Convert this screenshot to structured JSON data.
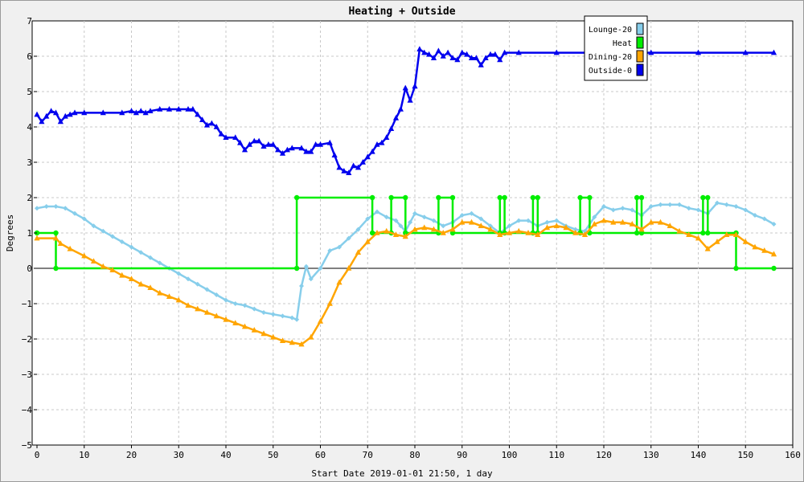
{
  "chart_data": {
    "type": "line",
    "title": "Heating + Outside",
    "xlabel": "Start Date 2019-01-01 21:50, 1 day",
    "ylabel": "Degrees",
    "xlim": [
      0,
      160
    ],
    "ylim": [
      -5,
      7
    ],
    "xticks": [
      "0",
      "10",
      "20",
      "30",
      "40",
      "50",
      "60",
      "70",
      "80",
      "90",
      "100",
      "110",
      "120",
      "130",
      "140",
      "150",
      "160"
    ],
    "yticks": [
      "7",
      "6",
      "5",
      "4",
      "3",
      "2",
      "1",
      "0",
      "−1",
      "−2",
      "−3",
      "−4",
      "−5"
    ],
    "grid": true,
    "legend_position": "top-right",
    "series": [
      {
        "name": "Lounge-20",
        "color": "#87ceeb",
        "marker": "diamond",
        "points": [
          [
            0,
            1.7
          ],
          [
            2,
            1.75
          ],
          [
            4,
            1.75
          ],
          [
            6,
            1.7
          ],
          [
            8,
            1.55
          ],
          [
            10,
            1.4
          ],
          [
            12,
            1.2
          ],
          [
            14,
            1.05
          ],
          [
            16,
            0.9
          ],
          [
            18,
            0.75
          ],
          [
            20,
            0.6
          ],
          [
            22,
            0.45
          ],
          [
            24,
            0.3
          ],
          [
            26,
            0.15
          ],
          [
            28,
            0.0
          ],
          [
            30,
            -0.15
          ],
          [
            32,
            -0.3
          ],
          [
            34,
            -0.45
          ],
          [
            36,
            -0.6
          ],
          [
            38,
            -0.75
          ],
          [
            40,
            -0.9
          ],
          [
            42,
            -1.0
          ],
          [
            44,
            -1.05
          ],
          [
            46,
            -1.15
          ],
          [
            48,
            -1.25
          ],
          [
            50,
            -1.3
          ],
          [
            52,
            -1.35
          ],
          [
            54,
            -1.4
          ],
          [
            55,
            -1.45
          ],
          [
            56,
            -0.5
          ],
          [
            57,
            0.05
          ],
          [
            58,
            -0.3
          ],
          [
            60,
            0.0
          ],
          [
            62,
            0.5
          ],
          [
            64,
            0.6
          ],
          [
            66,
            0.85
          ],
          [
            68,
            1.1
          ],
          [
            70,
            1.4
          ],
          [
            72,
            1.6
          ],
          [
            74,
            1.45
          ],
          [
            76,
            1.35
          ],
          [
            77,
            1.2
          ],
          [
            78,
            1.05
          ],
          [
            79,
            1.3
          ],
          [
            80,
            1.55
          ],
          [
            82,
            1.45
          ],
          [
            84,
            1.35
          ],
          [
            86,
            1.2
          ],
          [
            88,
            1.3
          ],
          [
            90,
            1.5
          ],
          [
            92,
            1.55
          ],
          [
            94,
            1.4
          ],
          [
            96,
            1.2
          ],
          [
            98,
            1.0
          ],
          [
            100,
            1.2
          ],
          [
            102,
            1.35
          ],
          [
            104,
            1.35
          ],
          [
            106,
            1.2
          ],
          [
            108,
            1.3
          ],
          [
            110,
            1.35
          ],
          [
            112,
            1.2
          ],
          [
            114,
            1.1
          ],
          [
            116,
            1.05
          ],
          [
            118,
            1.45
          ],
          [
            120,
            1.75
          ],
          [
            122,
            1.65
          ],
          [
            124,
            1.7
          ],
          [
            126,
            1.65
          ],
          [
            128,
            1.5
          ],
          [
            130,
            1.75
          ],
          [
            132,
            1.8
          ],
          [
            134,
            1.8
          ],
          [
            136,
            1.8
          ],
          [
            138,
            1.7
          ],
          [
            140,
            1.65
          ],
          [
            142,
            1.55
          ],
          [
            144,
            1.85
          ],
          [
            146,
            1.8
          ],
          [
            148,
            1.75
          ],
          [
            150,
            1.65
          ],
          [
            152,
            1.5
          ],
          [
            154,
            1.4
          ],
          [
            156,
            1.25
          ]
        ]
      },
      {
        "name": "Heat",
        "color": "#00ee00",
        "marker": "circle",
        "points": [
          [
            0,
            1
          ],
          [
            4,
            1
          ],
          [
            4,
            0
          ],
          [
            55,
            0
          ],
          [
            55,
            2
          ],
          [
            71,
            2
          ],
          [
            71,
            1
          ],
          [
            75,
            1
          ],
          [
            75,
            2
          ],
          [
            78,
            2
          ],
          [
            78,
            1
          ],
          [
            85,
            1
          ],
          [
            85,
            2
          ],
          [
            88,
            2
          ],
          [
            88,
            1
          ],
          [
            98,
            1
          ],
          [
            98,
            2
          ],
          [
            99,
            2
          ],
          [
            99,
            1
          ],
          [
            105,
            1
          ],
          [
            105,
            2
          ],
          [
            106,
            2
          ],
          [
            106,
            1
          ],
          [
            115,
            1
          ],
          [
            115,
            2
          ],
          [
            117,
            2
          ],
          [
            117,
            1
          ],
          [
            127,
            1
          ],
          [
            127,
            2
          ],
          [
            128,
            2
          ],
          [
            128,
            1
          ],
          [
            141,
            1
          ],
          [
            141,
            2
          ],
          [
            142,
            2
          ],
          [
            142,
            1
          ],
          [
            148,
            1
          ],
          [
            148,
            0
          ],
          [
            156,
            0
          ]
        ]
      },
      {
        "name": "Dining-20",
        "color": "#ffa500",
        "marker": "triangle",
        "points": [
          [
            0,
            0.85
          ],
          [
            4,
            0.85
          ],
          [
            5,
            0.7
          ],
          [
            7,
            0.55
          ],
          [
            10,
            0.35
          ],
          [
            12,
            0.2
          ],
          [
            14,
            0.05
          ],
          [
            16,
            -0.05
          ],
          [
            18,
            -0.2
          ],
          [
            20,
            -0.3
          ],
          [
            22,
            -0.45
          ],
          [
            24,
            -0.55
          ],
          [
            26,
            -0.7
          ],
          [
            28,
            -0.8
          ],
          [
            30,
            -0.9
          ],
          [
            32,
            -1.05
          ],
          [
            34,
            -1.15
          ],
          [
            36,
            -1.25
          ],
          [
            38,
            -1.35
          ],
          [
            40,
            -1.45
          ],
          [
            42,
            -1.55
          ],
          [
            44,
            -1.65
          ],
          [
            46,
            -1.75
          ],
          [
            48,
            -1.85
          ],
          [
            50,
            -1.95
          ],
          [
            52,
            -2.05
          ],
          [
            54,
            -2.1
          ],
          [
            56,
            -2.15
          ],
          [
            58,
            -1.95
          ],
          [
            60,
            -1.5
          ],
          [
            62,
            -1.0
          ],
          [
            64,
            -0.4
          ],
          [
            66,
            0.0
          ],
          [
            68,
            0.45
          ],
          [
            70,
            0.75
          ],
          [
            72,
            1.0
          ],
          [
            74,
            1.05
          ],
          [
            76,
            0.95
          ],
          [
            78,
            0.9
          ],
          [
            80,
            1.1
          ],
          [
            82,
            1.15
          ],
          [
            84,
            1.1
          ],
          [
            86,
            1.0
          ],
          [
            88,
            1.1
          ],
          [
            90,
            1.3
          ],
          [
            92,
            1.3
          ],
          [
            94,
            1.2
          ],
          [
            96,
            1.1
          ],
          [
            98,
            0.95
          ],
          [
            100,
            1.0
          ],
          [
            102,
            1.05
          ],
          [
            104,
            1.0
          ],
          [
            106,
            0.95
          ],
          [
            108,
            1.15
          ],
          [
            110,
            1.2
          ],
          [
            112,
            1.15
          ],
          [
            114,
            1.0
          ],
          [
            116,
            0.95
          ],
          [
            118,
            1.25
          ],
          [
            120,
            1.35
          ],
          [
            122,
            1.3
          ],
          [
            124,
            1.3
          ],
          [
            126,
            1.25
          ],
          [
            128,
            1.1
          ],
          [
            130,
            1.3
          ],
          [
            132,
            1.3
          ],
          [
            134,
            1.2
          ],
          [
            136,
            1.05
          ],
          [
            138,
            0.95
          ],
          [
            140,
            0.85
          ],
          [
            142,
            0.55
          ],
          [
            144,
            0.75
          ],
          [
            146,
            0.95
          ],
          [
            148,
            0.95
          ],
          [
            150,
            0.75
          ],
          [
            152,
            0.6
          ],
          [
            154,
            0.5
          ],
          [
            156,
            0.4
          ]
        ]
      },
      {
        "name": "Outside-0",
        "color": "#0000ee",
        "marker": "triangle",
        "points": [
          [
            0,
            4.35
          ],
          [
            1,
            4.15
          ],
          [
            2,
            4.3
          ],
          [
            3,
            4.45
          ],
          [
            4,
            4.4
          ],
          [
            5,
            4.15
          ],
          [
            6,
            4.3
          ],
          [
            7,
            4.35
          ],
          [
            8,
            4.4
          ],
          [
            10,
            4.4
          ],
          [
            14,
            4.4
          ],
          [
            18,
            4.4
          ],
          [
            20,
            4.45
          ],
          [
            21,
            4.4
          ],
          [
            22,
            4.45
          ],
          [
            23,
            4.4
          ],
          [
            24,
            4.45
          ],
          [
            26,
            4.5
          ],
          [
            28,
            4.5
          ],
          [
            30,
            4.5
          ],
          [
            32,
            4.5
          ],
          [
            33,
            4.5
          ],
          [
            34,
            4.35
          ],
          [
            35,
            4.2
          ],
          [
            36,
            4.05
          ],
          [
            37,
            4.1
          ],
          [
            38,
            4.0
          ],
          [
            39,
            3.8
          ],
          [
            40,
            3.7
          ],
          [
            42,
            3.7
          ],
          [
            43,
            3.55
          ],
          [
            44,
            3.35
          ],
          [
            45,
            3.5
          ],
          [
            46,
            3.6
          ],
          [
            47,
            3.6
          ],
          [
            48,
            3.45
          ],
          [
            49,
            3.5
          ],
          [
            50,
            3.5
          ],
          [
            51,
            3.35
          ],
          [
            52,
            3.25
          ],
          [
            53,
            3.35
          ],
          [
            54,
            3.4
          ],
          [
            56,
            3.4
          ],
          [
            57,
            3.3
          ],
          [
            58,
            3.3
          ],
          [
            59,
            3.5
          ],
          [
            60,
            3.5
          ],
          [
            62,
            3.55
          ],
          [
            63,
            3.2
          ],
          [
            64,
            2.85
          ],
          [
            65,
            2.75
          ],
          [
            66,
            2.7
          ],
          [
            67,
            2.9
          ],
          [
            68,
            2.85
          ],
          [
            69,
            3.0
          ],
          [
            70,
            3.15
          ],
          [
            71,
            3.3
          ],
          [
            72,
            3.5
          ],
          [
            73,
            3.55
          ],
          [
            74,
            3.7
          ],
          [
            75,
            3.95
          ],
          [
            76,
            4.25
          ],
          [
            77,
            4.5
          ],
          [
            78,
            5.1
          ],
          [
            79,
            4.75
          ],
          [
            80,
            5.15
          ],
          [
            81,
            6.2
          ],
          [
            82,
            6.1
          ],
          [
            83,
            6.05
          ],
          [
            84,
            5.95
          ],
          [
            85,
            6.15
          ],
          [
            86,
            6.0
          ],
          [
            87,
            6.1
          ],
          [
            88,
            5.95
          ],
          [
            89,
            5.9
          ],
          [
            90,
            6.1
          ],
          [
            91,
            6.05
          ],
          [
            92,
            5.95
          ],
          [
            93,
            5.95
          ],
          [
            94,
            5.75
          ],
          [
            95,
            5.95
          ],
          [
            96,
            6.05
          ],
          [
            97,
            6.05
          ],
          [
            98,
            5.9
          ],
          [
            99,
            6.1
          ],
          [
            102,
            6.1
          ],
          [
            110,
            6.1
          ],
          [
            120,
            6.1
          ],
          [
            130,
            6.1
          ],
          [
            140,
            6.1
          ],
          [
            150,
            6.1
          ],
          [
            156,
            6.1
          ]
        ]
      }
    ]
  }
}
